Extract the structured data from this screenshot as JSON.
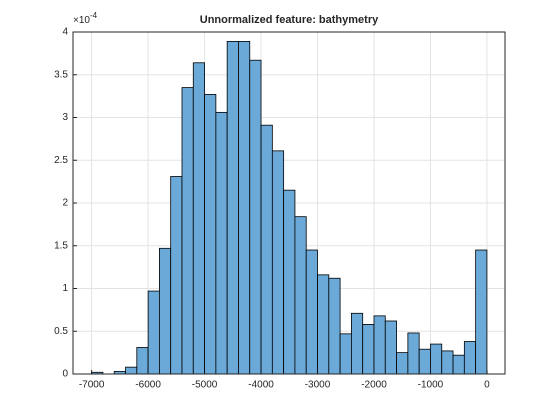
{
  "chart_data": {
    "type": "histogram",
    "title": "Unnormalized feature: bathymetry",
    "y_multiplier": {
      "base": "×10",
      "exponent": "-4"
    },
    "bins": [
      -7000,
      -6800,
      -6600,
      -6400,
      -6200,
      -6000,
      -5800,
      -5600,
      -5400,
      -5200,
      -5000,
      -4800,
      -4600,
      -4400,
      -4200,
      -4000,
      -3800,
      -3600,
      -3400,
      -3200,
      -3000,
      -2800,
      -2600,
      -2400,
      -2200,
      -2000,
      -1800,
      -1600,
      -1400,
      -1200,
      -1000,
      -800,
      -600,
      -400,
      -200,
      0
    ],
    "values": [
      0.02,
      0,
      0.03,
      0.08,
      0.31,
      0.97,
      1.47,
      2.31,
      3.35,
      3.64,
      3.27,
      3.06,
      3.89,
      3.89,
      3.67,
      2.91,
      2.61,
      2.15,
      1.84,
      1.45,
      1.16,
      1.12,
      0.47,
      0.71,
      0.58,
      0.68,
      0.62,
      0.25,
      0.48,
      0.29,
      0.35,
      0.27,
      0.22,
      0.38,
      1.45
    ],
    "color": "#6aa9d8",
    "edge_color": "#000000",
    "xlim": [
      -7330,
      320
    ],
    "xticks": [
      -7000,
      -6000,
      -5000,
      -4000,
      -3000,
      -2000,
      -1000,
      0
    ],
    "ylim": [
      0,
      4
    ],
    "yticks": [
      0,
      0.5,
      1,
      1.5,
      2,
      2.5,
      3,
      3.5,
      4
    ],
    "grid": true
  }
}
